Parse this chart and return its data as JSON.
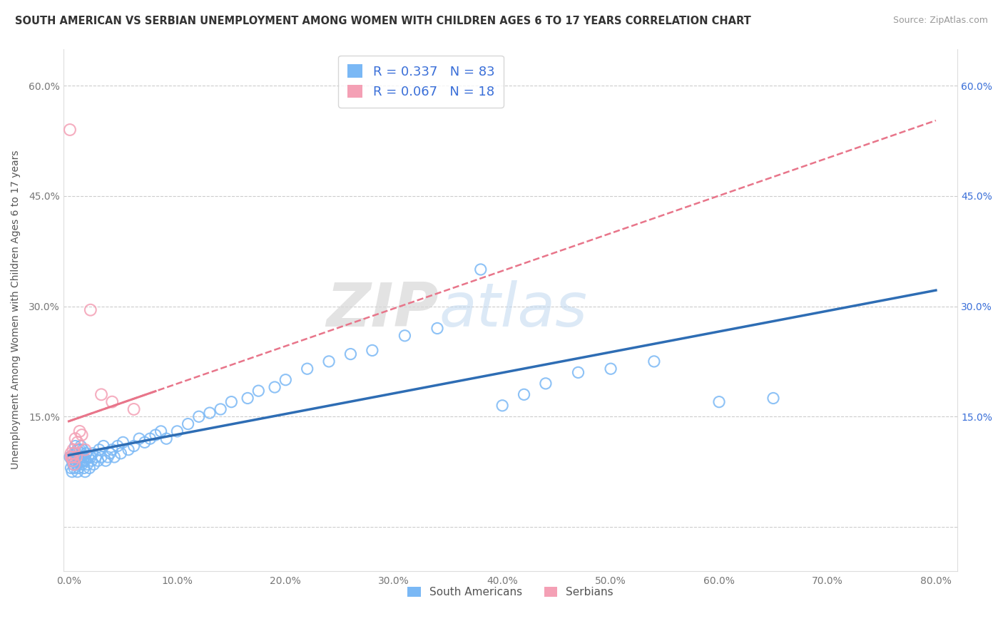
{
  "title": "SOUTH AMERICAN VS SERBIAN UNEMPLOYMENT AMONG WOMEN WITH CHILDREN AGES 6 TO 17 YEARS CORRELATION CHART",
  "source": "Source: ZipAtlas.com",
  "ylabel": "Unemployment Among Women with Children Ages 6 to 17 years",
  "watermark_zip": "ZIP",
  "watermark_atlas": "atlas",
  "xlim": [
    -0.005,
    0.82
  ],
  "ylim": [
    -0.06,
    0.65
  ],
  "xticks": [
    0.0,
    0.1,
    0.2,
    0.3,
    0.4,
    0.5,
    0.6,
    0.7,
    0.8
  ],
  "yticks": [
    0.0,
    0.15,
    0.3,
    0.45,
    0.6
  ],
  "south_american_color": "#7ab8f5",
  "serbian_color": "#f4a0b5",
  "regression_blue_color": "#2e6db4",
  "regression_pink_color": "#e8758a",
  "R_sa": 0.337,
  "N_sa": 83,
  "R_sr": 0.067,
  "N_sr": 18,
  "legend_text_color": "#3a6fd8",
  "background_color": "#ffffff",
  "grid_color": "#cccccc",
  "title_color": "#333333",
  "source_color": "#999999",
  "ylabel_color": "#555555",
  "tick_color": "#777777",
  "right_tick_color": "#3a6fd8",
  "sa_x": [
    0.001,
    0.002,
    0.003,
    0.003,
    0.004,
    0.004,
    0.005,
    0.005,
    0.006,
    0.006,
    0.007,
    0.007,
    0.008,
    0.008,
    0.008,
    0.009,
    0.009,
    0.01,
    0.01,
    0.011,
    0.011,
    0.012,
    0.012,
    0.013,
    0.013,
    0.014,
    0.014,
    0.015,
    0.015,
    0.016,
    0.017,
    0.018,
    0.019,
    0.02,
    0.021,
    0.022,
    0.023,
    0.025,
    0.027,
    0.028,
    0.03,
    0.032,
    0.034,
    0.036,
    0.038,
    0.04,
    0.042,
    0.045,
    0.048,
    0.05,
    0.055,
    0.06,
    0.065,
    0.07,
    0.075,
    0.08,
    0.085,
    0.09,
    0.1,
    0.11,
    0.12,
    0.13,
    0.14,
    0.15,
    0.165,
    0.175,
    0.19,
    0.2,
    0.22,
    0.24,
    0.26,
    0.28,
    0.31,
    0.34,
    0.38,
    0.4,
    0.42,
    0.44,
    0.47,
    0.5,
    0.54,
    0.6,
    0.65
  ],
  "sa_y": [
    0.095,
    0.08,
    0.09,
    0.075,
    0.085,
    0.095,
    0.08,
    0.1,
    0.09,
    0.11,
    0.085,
    0.1,
    0.075,
    0.09,
    0.105,
    0.08,
    0.095,
    0.09,
    0.105,
    0.095,
    0.11,
    0.085,
    0.1,
    0.09,
    0.105,
    0.08,
    0.095,
    0.075,
    0.09,
    0.1,
    0.085,
    0.095,
    0.08,
    0.095,
    0.09,
    0.1,
    0.085,
    0.095,
    0.09,
    0.105,
    0.095,
    0.11,
    0.09,
    0.095,
    0.1,
    0.105,
    0.095,
    0.11,
    0.1,
    0.115,
    0.105,
    0.11,
    0.12,
    0.115,
    0.12,
    0.125,
    0.13,
    0.12,
    0.13,
    0.14,
    0.15,
    0.155,
    0.16,
    0.17,
    0.175,
    0.185,
    0.19,
    0.2,
    0.215,
    0.225,
    0.235,
    0.24,
    0.26,
    0.27,
    0.35,
    0.165,
    0.18,
    0.195,
    0.21,
    0.215,
    0.225,
    0.17,
    0.175
  ],
  "sr_x": [
    0.001,
    0.002,
    0.002,
    0.003,
    0.004,
    0.004,
    0.005,
    0.005,
    0.006,
    0.007,
    0.008,
    0.01,
    0.012,
    0.015,
    0.02,
    0.03,
    0.04,
    0.06
  ],
  "sr_y": [
    0.54,
    0.095,
    0.1,
    0.095,
    0.105,
    0.09,
    0.1,
    0.085,
    0.12,
    0.095,
    0.115,
    0.13,
    0.125,
    0.105,
    0.295,
    0.18,
    0.17,
    0.16
  ]
}
